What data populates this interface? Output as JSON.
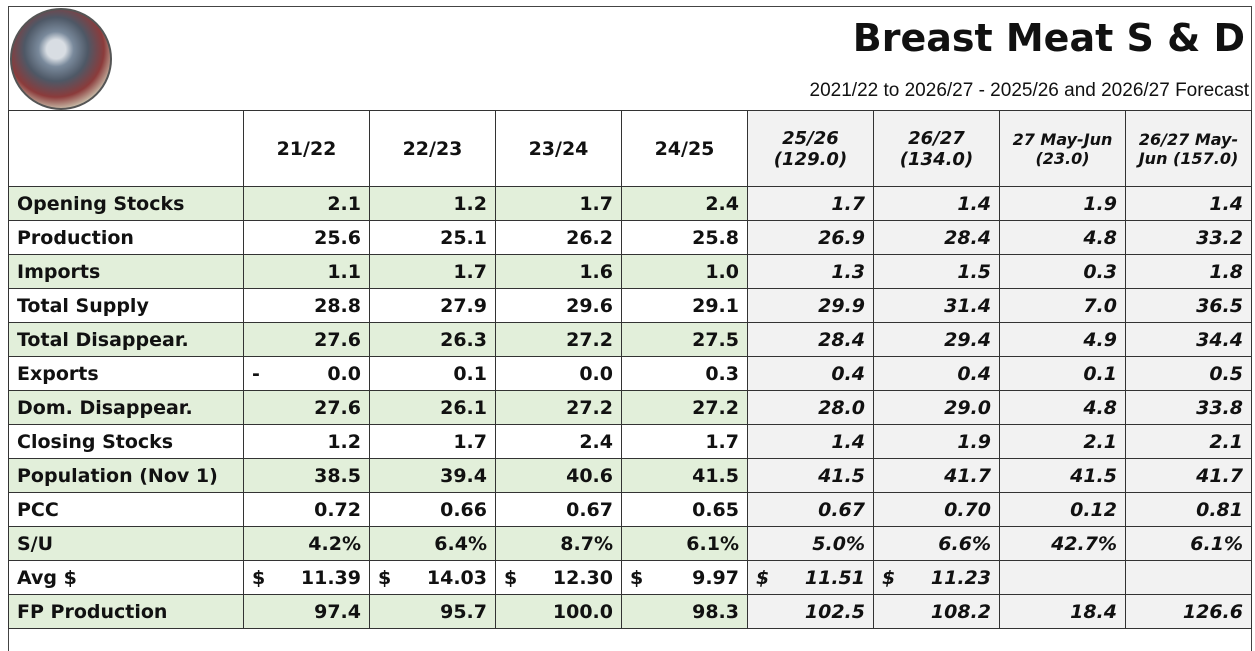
{
  "header": {
    "title": "Breast Meat S & D",
    "subtitle": "2021/22 to 2026/27 - 2025/26 and 2026/27 Forecast"
  },
  "table": {
    "columns": [
      [
        "21/22"
      ],
      [
        "22/23"
      ],
      [
        "23/24"
      ],
      [
        "24/25"
      ],
      [
        "25/26",
        "(129.0)"
      ],
      [
        "26/27",
        "(134.0)"
      ],
      [
        "27 May-Jun",
        "(23.0)"
      ],
      [
        "26/27 May-",
        "Jun (157.0)"
      ]
    ],
    "rows": [
      {
        "label": "Opening Stocks",
        "cells": [
          "2.1",
          "1.2",
          "1.7",
          "2.4",
          "1.7",
          "1.4",
          "1.9",
          "1.4"
        ]
      },
      {
        "label": "Production",
        "cells": [
          "25.6",
          "25.1",
          "26.2",
          "25.8",
          "26.9",
          "28.4",
          "4.8",
          "33.2"
        ]
      },
      {
        "label": "Imports",
        "cells": [
          "1.1",
          "1.7",
          "1.6",
          "1.0",
          "1.3",
          "1.5",
          "0.3",
          "1.8"
        ]
      },
      {
        "label": "Total Supply",
        "cells": [
          "28.8",
          "27.9",
          "29.6",
          "29.1",
          "29.9",
          "31.4",
          "7.0",
          "36.5"
        ]
      },
      {
        "label": "Total Disappear.",
        "cells": [
          "27.6",
          "26.3",
          "27.2",
          "27.5",
          "28.4",
          "29.4",
          "4.9",
          "34.4"
        ]
      },
      {
        "label": "Exports",
        "cells": [
          {
            "symbol": "-",
            "amount": "0.0"
          },
          "0.1",
          "0.0",
          "0.3",
          "0.4",
          "0.4",
          "0.1",
          "0.5"
        ]
      },
      {
        "label": "Dom. Disappear.",
        "cells": [
          "27.6",
          "26.1",
          "27.2",
          "27.2",
          "28.0",
          "29.0",
          "4.8",
          "33.8"
        ]
      },
      {
        "label": "Closing Stocks",
        "cells": [
          "1.2",
          "1.7",
          "2.4",
          "1.7",
          "1.4",
          "1.9",
          "2.1",
          "2.1"
        ]
      },
      {
        "label": "Population (Nov 1)",
        "cells": [
          "38.5",
          "39.4",
          "40.6",
          "41.5",
          "41.5",
          "41.7",
          "41.5",
          "41.7"
        ]
      },
      {
        "label": "PCC",
        "cells": [
          "0.72",
          "0.66",
          "0.67",
          "0.65",
          "0.67",
          "0.70",
          "0.12",
          "0.81"
        ]
      },
      {
        "label": "S/U",
        "cells": [
          "4.2%",
          "6.4%",
          "8.7%",
          "6.1%",
          "5.0%",
          "6.6%",
          "42.7%",
          "6.1%"
        ]
      },
      {
        "label": "Avg $",
        "cells": [
          {
            "symbol": "$",
            "amount": "11.39"
          },
          {
            "symbol": "$",
            "amount": "14.03"
          },
          {
            "symbol": "$",
            "amount": "12.30"
          },
          {
            "symbol": "$",
            "amount": "9.97"
          },
          {
            "symbol": "$",
            "amount": "11.51"
          },
          {
            "symbol": "$",
            "amount": "11.23"
          }
        ]
      },
      {
        "label": "FP Production",
        "cells": [
          "97.4",
          "95.7",
          "100.0",
          "98.3",
          "102.5",
          "108.2",
          "18.4",
          "126.6"
        ]
      }
    ]
  }
}
